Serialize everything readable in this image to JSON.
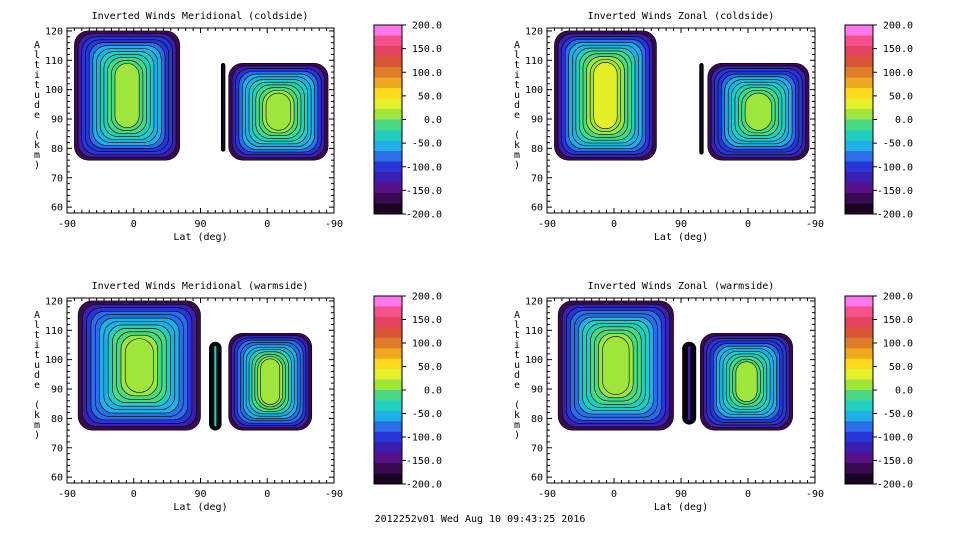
{
  "footer": "2012252v01 Wed Aug 10 09:43:25 2016",
  "colorbar": {
    "labels": [
      "200.0",
      "150.0",
      "100.0",
      "50.0",
      "0.0",
      "-50.0",
      "-100.0",
      "-150.0",
      "-200.0"
    ],
    "min": -200,
    "max": 200,
    "colors": [
      "#ff77ee",
      "#f4528c",
      "#e2435f",
      "#d95536",
      "#e07c2a",
      "#f0a820",
      "#fcd91c",
      "#e6f02a",
      "#9ee63c",
      "#4ad982",
      "#20cfbf",
      "#20b0e6",
      "#2a6ee8",
      "#2836d8",
      "#3a1fb0",
      "#5a1088",
      "#3a0a50",
      "#1a0520"
    ]
  },
  "chart_data": [
    {
      "type": "heatmap",
      "title": "Inverted Winds Meridional (coldside)",
      "xlabel": "Lat (deg)",
      "ylabel": "Altitude (km)",
      "xticks": [
        "-90",
        "0",
        "90",
        "0",
        "-90"
      ],
      "yticks": [
        "60",
        "70",
        "80",
        "90",
        "100",
        "110",
        "120"
      ],
      "ylim": [
        58,
        121
      ],
      "regions": [
        {
          "x": [
            -80,
            62
          ],
          "y": [
            76,
            120
          ],
          "core": 10,
          "edge": -170
        },
        {
          "x": [
            118,
            123
          ],
          "y": [
            79,
            109
          ],
          "core": -120,
          "edge": -190
        },
        {
          "x": [
            128,
            262
          ],
          "y": [
            76,
            109
          ],
          "core": 30,
          "edge": -170
        }
      ]
    },
    {
      "type": "heatmap",
      "title": "Inverted Winds Zonal (coldside)",
      "xlabel": "Lat (deg)",
      "ylabel": "Altitude (km)",
      "xticks": [
        "-90",
        "0",
        "90",
        "0",
        "-90"
      ],
      "yticks": [
        "60",
        "70",
        "80",
        "90",
        "100",
        "110",
        "120"
      ],
      "ylim": [
        58,
        121
      ],
      "regions": [
        {
          "x": [
            -80,
            57
          ],
          "y": [
            76,
            120
          ],
          "core": 35,
          "edge": -170
        },
        {
          "x": [
            115,
            120
          ],
          "y": [
            78,
            109
          ],
          "core": -150,
          "edge": -195
        },
        {
          "x": [
            126,
            262
          ],
          "y": [
            76,
            109
          ],
          "core": 10,
          "edge": -170
        }
      ]
    },
    {
      "type": "heatmap",
      "title": "Inverted Winds Meridional (warmside)",
      "xlabel": "Lat (deg)",
      "ylabel": "Altitude (km)",
      "xticks": [
        "-90",
        "0",
        "90",
        "0",
        "-90"
      ],
      "yticks": [
        "60",
        "70",
        "80",
        "90",
        "100",
        "110",
        "120"
      ],
      "ylim": [
        58,
        121
      ],
      "regions": [
        {
          "x": [
            -75,
            90
          ],
          "y": [
            76,
            120
          ],
          "core": 20,
          "edge": -170
        },
        {
          "x": [
            102,
            118
          ],
          "y": [
            76,
            106
          ],
          "core": -20,
          "edge": -170
        },
        {
          "x": [
            128,
            240
          ],
          "y": [
            76,
            109
          ],
          "core": 20,
          "edge": -170
        }
      ]
    },
    {
      "type": "heatmap",
      "title": "Inverted Winds Zonal (warmside)",
      "xlabel": "Lat (deg)",
      "ylabel": "Altitude (km)",
      "xticks": [
        "-90",
        "0",
        "90",
        "0",
        "-90"
      ],
      "yticks": [
        "60",
        "70",
        "80",
        "90",
        "100",
        "110",
        "120"
      ],
      "ylim": [
        58,
        121
      ],
      "regions": [
        {
          "x": [
            -75,
            80
          ],
          "y": [
            76,
            120
          ],
          "core": 25,
          "edge": -170
        },
        {
          "x": [
            92,
            110
          ],
          "y": [
            78,
            106
          ],
          "core": -110,
          "edge": -190
        },
        {
          "x": [
            116,
            240
          ],
          "y": [
            76,
            109
          ],
          "core": 10,
          "edge": -170
        }
      ]
    }
  ]
}
